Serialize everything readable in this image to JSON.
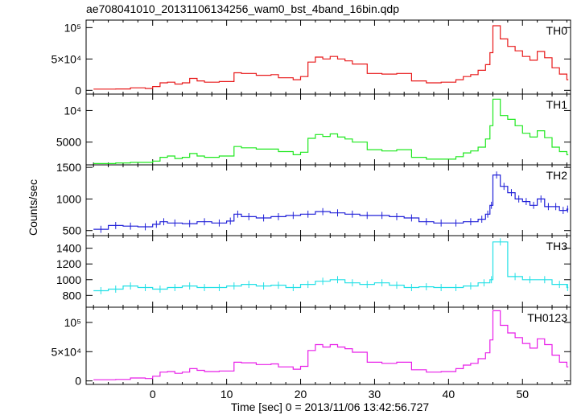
{
  "chart_data": {
    "type": "line",
    "title": "ae708041010_20131106134256_wam0_bst_4band_16bin.qdp",
    "xlabel": "Time [sec] 0 = 2013/11/06 13:42:56.727",
    "ylabel": "Counts/sec",
    "xlim": [
      -9,
      56.5
    ],
    "x_ticks": [
      0,
      10,
      20,
      30,
      40,
      50
    ],
    "x_tick_labels": [
      "0",
      "10",
      "20",
      "30",
      "40",
      "50"
    ],
    "panels": [
      {
        "name": "TH0",
        "color": "#e8191a",
        "ylim": [
          -6000,
          112000
        ],
        "y_ticks": [
          0,
          50000,
          100000
        ],
        "y_tick_labels": [
          "0",
          "5×10⁴",
          "10⁵"
        ],
        "errors": false,
        "x": [
          -8,
          -5,
          -3,
          -1,
          0,
          1,
          2,
          3,
          4,
          5,
          6,
          7,
          9,
          11,
          12,
          14,
          16,
          17,
          19,
          20,
          21,
          22,
          23,
          24,
          25,
          26,
          27,
          29,
          31,
          33,
          35,
          37,
          39,
          41,
          42,
          43,
          44,
          45,
          45.6,
          46,
          47,
          48,
          49,
          50,
          51,
          52,
          53,
          54,
          55,
          56
        ],
        "y": [
          2000,
          2200,
          4000,
          3000,
          6000,
          12000,
          13000,
          10000,
          12000,
          19000,
          15000,
          13000,
          14000,
          28000,
          27000,
          24000,
          25000,
          20000,
          17000,
          22000,
          45000,
          53000,
          50000,
          54000,
          50000,
          47000,
          42000,
          27000,
          26000,
          27000,
          15000,
          12000,
          13000,
          17000,
          22000,
          25000,
          32000,
          41000,
          60000,
          103000,
          82000,
          70000,
          63000,
          54000,
          48000,
          62000,
          52000,
          36000,
          26000,
          17000
        ]
      },
      {
        "name": "TH1",
        "color": "#1fe81f",
        "ylim": [
          1400,
          12600
        ],
        "y_ticks": [
          5000,
          10000
        ],
        "y_tick_labels": [
          "5000",
          "10⁴"
        ],
        "errors": false,
        "x": [
          -8,
          -5,
          -3,
          -1,
          0,
          1,
          2,
          3,
          4,
          5,
          6,
          7,
          9,
          11,
          12,
          14,
          16,
          17,
          19,
          20,
          21,
          22,
          23,
          24,
          25,
          26,
          27,
          29,
          31,
          33,
          35,
          37,
          39,
          41,
          42,
          43,
          44,
          45,
          45.6,
          46,
          47,
          48,
          49,
          50,
          51,
          52,
          53,
          54,
          55,
          56
        ],
        "y": [
          1600,
          1700,
          1800,
          1800,
          2000,
          2600,
          2800,
          2400,
          2600,
          3200,
          2800,
          2600,
          2800,
          4300,
          4100,
          3900,
          3900,
          3500,
          3000,
          3400,
          5600,
          6200,
          5900,
          6300,
          5800,
          5500,
          5000,
          3800,
          3600,
          3800,
          2600,
          2300,
          2300,
          2700,
          3300,
          3600,
          4200,
          5500,
          7600,
          11800,
          9200,
          8600,
          7600,
          6400,
          5800,
          6800,
          5700,
          4200,
          3500,
          3000
        ]
      },
      {
        "name": "TH2",
        "color": "#2020d8",
        "ylim": [
          420,
          1540
        ],
        "y_ticks": [
          500,
          1000,
          1500
        ],
        "y_tick_labels": [
          "500",
          "1000",
          "1500"
        ],
        "errors": true,
        "x": [
          -8,
          -6,
          -4,
          -2,
          0,
          1,
          2,
          4,
          6,
          8,
          10,
          11,
          12,
          14,
          16,
          18,
          20,
          22,
          24,
          26,
          28,
          30,
          32,
          34,
          36,
          38,
          40,
          42,
          44,
          45,
          45.6,
          46,
          47,
          48,
          49,
          50,
          51,
          52,
          53,
          54,
          55,
          56
        ],
        "y": [
          520,
          580,
          570,
          560,
          600,
          640,
          620,
          610,
          640,
          620,
          650,
          760,
          720,
          700,
          720,
          740,
          760,
          800,
          780,
          760,
          740,
          740,
          720,
          700,
          640,
          620,
          620,
          640,
          680,
          760,
          900,
          1380,
          1200,
          1100,
          1000,
          960,
          900,
          1000,
          880,
          880,
          820,
          840
        ]
      },
      {
        "name": "TH3",
        "color": "#22e0e6",
        "ylim": [
          650,
          1560
        ],
        "y_ticks": [
          800,
          1000,
          1200,
          1400
        ],
        "y_tick_labels": [
          "800",
          "1000",
          "1200",
          "1400"
        ],
        "errors": true,
        "x": [
          -8,
          -6,
          -4,
          -2,
          0,
          2,
          4,
          6,
          8,
          10,
          12,
          14,
          16,
          18,
          20,
          22,
          24,
          26,
          28,
          30,
          32,
          34,
          36,
          38,
          40,
          42,
          44,
          45.6,
          46,
          48,
          50,
          52,
          54,
          56
        ],
        "y": [
          860,
          880,
          920,
          900,
          880,
          900,
          920,
          900,
          900,
          920,
          940,
          920,
          930,
          900,
          940,
          980,
          1000,
          960,
          940,
          960,
          930,
          900,
          910,
          900,
          900,
          920,
          960,
          1000,
          1480,
          1040,
          1000,
          1000,
          940,
          900
        ]
      },
      {
        "name": "TH0123",
        "color": "#e81ee8",
        "ylim": [
          -6000,
          126000
        ],
        "y_ticks": [
          0,
          50000,
          100000
        ],
        "y_tick_labels": [
          "0",
          "5×10⁴",
          "10⁵"
        ],
        "errors": false,
        "x": [
          -8,
          -5,
          -3,
          -1,
          0,
          1,
          2,
          3,
          4,
          5,
          6,
          7,
          9,
          11,
          12,
          14,
          16,
          17,
          19,
          20,
          21,
          22,
          23,
          24,
          25,
          26,
          27,
          29,
          31,
          33,
          35,
          37,
          39,
          41,
          42,
          43,
          44,
          45,
          45.6,
          46,
          47,
          48,
          49,
          50,
          51,
          52,
          53,
          54,
          55,
          56
        ],
        "y": [
          2000,
          2500,
          5000,
          4000,
          8000,
          15000,
          16000,
          13000,
          15000,
          21000,
          18000,
          16000,
          17000,
          32000,
          31000,
          28000,
          29000,
          24000,
          20000,
          25000,
          52000,
          62000,
          58000,
          62000,
          58000,
          55000,
          49000,
          32000,
          30000,
          32000,
          19000,
          15000,
          16000,
          21000,
          27000,
          30000,
          38000,
          48000,
          70000,
          120000,
          95000,
          82000,
          74000,
          64000,
          56000,
          72000,
          62000,
          44000,
          32000,
          24000
        ]
      }
    ]
  }
}
